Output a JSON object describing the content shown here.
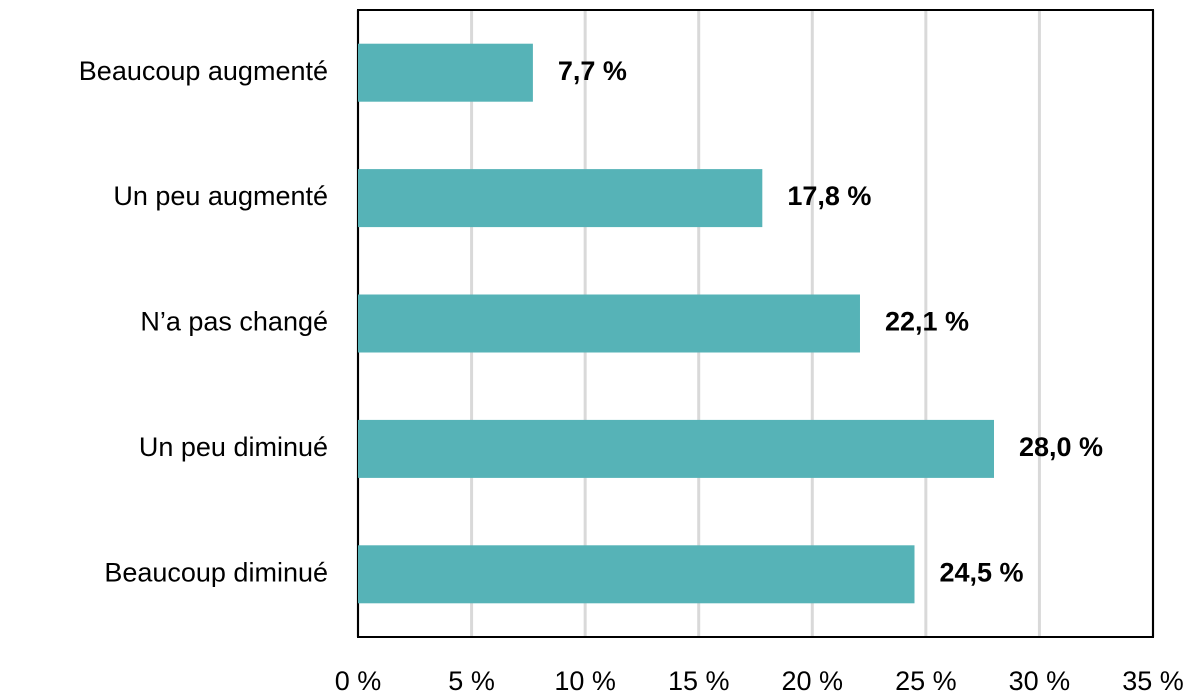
{
  "chart_data": {
    "type": "bar",
    "orientation": "horizontal",
    "categories": [
      "Beaucoup augmenté",
      "Un peu augmenté",
      "N’a pas changé",
      "Un peu diminué",
      "Beaucoup diminué"
    ],
    "values": [
      7.7,
      17.8,
      22.1,
      28.0,
      24.5
    ],
    "value_labels": [
      "7,7 %",
      "17,8 %",
      "22,1 %",
      "28,0 %",
      "24,5 %"
    ],
    "color": "#56b3b7",
    "xlim": [
      0,
      35
    ],
    "xticks": [
      {
        "value": 0,
        "label": "0 %"
      },
      {
        "value": 5,
        "label": "5 %"
      },
      {
        "value": 10,
        "label": "10 %"
      },
      {
        "value": 15,
        "label": "15 %"
      },
      {
        "value": 20,
        "label": "20 %"
      },
      {
        "value": 25,
        "label": "25 %"
      },
      {
        "value": 30,
        "label": "30 %"
      },
      {
        "value": 35,
        "label": "35 %"
      }
    ],
    "grid": true
  }
}
